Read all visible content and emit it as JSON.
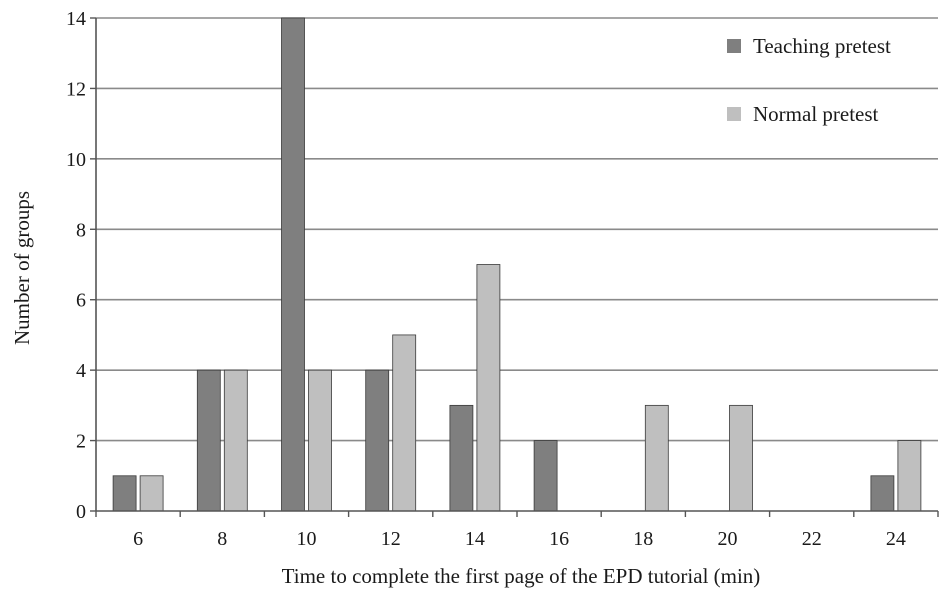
{
  "chart_data": {
    "type": "bar",
    "title": "",
    "xlabel": "Time to complete the first page of the EPD tutorial (min)",
    "ylabel": "Number of groups",
    "categories": [
      "6",
      "8",
      "10",
      "12",
      "14",
      "16",
      "18",
      "20",
      "22",
      "24"
    ],
    "ylim": [
      0,
      14
    ],
    "yticks": [
      0,
      2,
      4,
      6,
      8,
      10,
      12,
      14
    ],
    "grid": true,
    "legend_position": "top-right",
    "series": [
      {
        "name": "Teaching pretest",
        "color": "#7f7f7f",
        "values": [
          1,
          4,
          14,
          4,
          3,
          2,
          0,
          0,
          0,
          1
        ]
      },
      {
        "name": "Normal pretest",
        "color": "#bfbfbf",
        "values": [
          1,
          4,
          4,
          5,
          7,
          0,
          3,
          3,
          0,
          2
        ]
      }
    ]
  }
}
